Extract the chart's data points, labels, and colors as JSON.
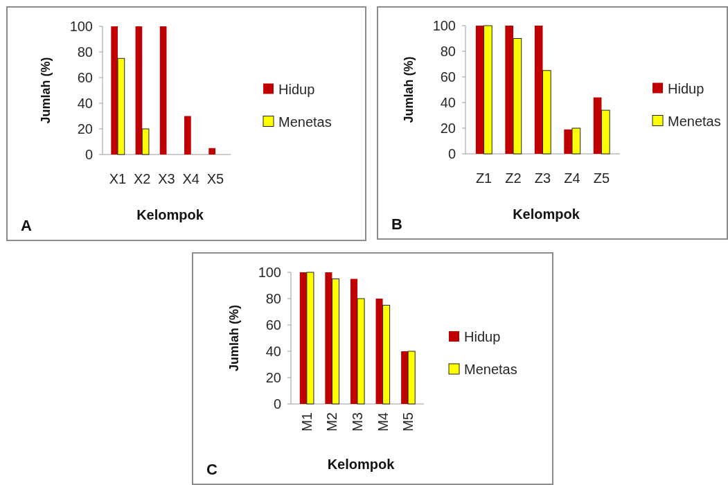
{
  "chart_data": [
    {
      "type": "bar",
      "xlabel": "Kelompok",
      "ylabel": "Jumlah (%)",
      "categories": [
        "X1",
        "X2",
        "X3",
        "X4",
        "X5"
      ],
      "series": [
        {
          "name": "Hidup",
          "color": "#c00000",
          "values": [
            100,
            100,
            100,
            30,
            5
          ]
        },
        {
          "name": "Menetas",
          "color": "#ffff00",
          "values": [
            75,
            20,
            0,
            0,
            0
          ]
        }
      ],
      "ylim": [
        0,
        100
      ],
      "yticks": [
        0,
        20,
        40,
        60,
        80,
        100
      ],
      "legend": "right",
      "annotations": [
        "A"
      ]
    },
    {
      "type": "bar",
      "xlabel": "Kelompok",
      "ylabel": "Jumlah (%)",
      "categories": [
        "Z1",
        "Z2",
        "Z3",
        "Z4",
        "Z5"
      ],
      "series": [
        {
          "name": "Hidup",
          "color": "#c00000",
          "values": [
            100,
            100,
            100,
            19,
            44
          ]
        },
        {
          "name": "Menetas",
          "color": "#ffff00",
          "values": [
            100,
            90,
            65,
            20,
            34
          ]
        }
      ],
      "ylim": [
        0,
        100
      ],
      "yticks": [
        0,
        20,
        40,
        60,
        80,
        100
      ],
      "legend": "right",
      "annotations": [
        "B"
      ]
    },
    {
      "type": "bar",
      "xlabel": "Kelompok",
      "ylabel": "Jumlah (%)",
      "categories": [
        "M1",
        "M2",
        "M3",
        "M4",
        "M5"
      ],
      "series": [
        {
          "name": "Hidup",
          "color": "#c00000",
          "values": [
            100,
            100,
            95,
            80,
            40
          ]
        },
        {
          "name": "Menetas",
          "color": "#ffff00",
          "values": [
            100,
            95,
            80,
            75,
            40
          ]
        }
      ],
      "ylim": [
        0,
        100
      ],
      "yticks": [
        0,
        20,
        40,
        60,
        80,
        100
      ],
      "legend": "right",
      "annotations": [
        "C"
      ]
    }
  ]
}
